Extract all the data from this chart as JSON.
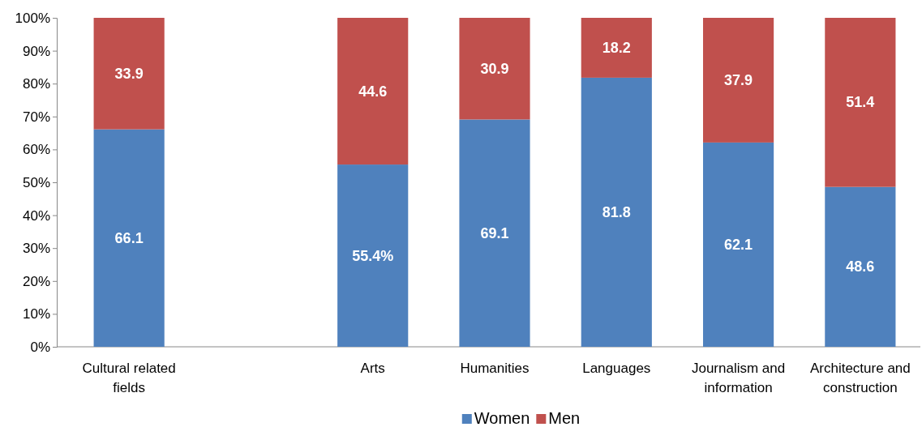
{
  "chart_data": {
    "type": "bar",
    "stacked": true,
    "categories": [
      "Cultural related fields",
      null,
      "Arts",
      "Humanities",
      "Languages",
      "Journalism and information",
      "Architecture and construction"
    ],
    "series": [
      {
        "name": "Women",
        "color": "#4f81bd",
        "values": [
          66.1,
          null,
          55.4,
          69.1,
          81.8,
          62.1,
          48.6
        ],
        "value_labels": [
          "66.1",
          null,
          "55.4%",
          "69.1",
          "81.8",
          "62.1",
          "48.6"
        ]
      },
      {
        "name": "Men",
        "color": "#c0504d",
        "values": [
          33.9,
          null,
          44.6,
          30.9,
          18.2,
          37.9,
          51.4
        ],
        "value_labels": [
          "33.9",
          null,
          "44.6",
          "30.9",
          "18.2",
          "37.9",
          "51.4"
        ]
      }
    ],
    "ylim": [
      0,
      100
    ],
    "yticks": [
      {
        "value": 0,
        "label": "0%"
      },
      {
        "value": 10,
        "label": "10%"
      },
      {
        "value": 20,
        "label": "20%"
      },
      {
        "value": 30,
        "label": "30%"
      },
      {
        "value": 40,
        "label": "40%"
      },
      {
        "value": 50,
        "label": "50%"
      },
      {
        "value": 60,
        "label": "60%"
      },
      {
        "value": 70,
        "label": "70%"
      },
      {
        "value": 80,
        "label": "80%"
      },
      {
        "value": 90,
        "label": "90%"
      },
      {
        "value": 100,
        "label": "100%"
      }
    ],
    "grid": false,
    "legend": "bottom"
  }
}
